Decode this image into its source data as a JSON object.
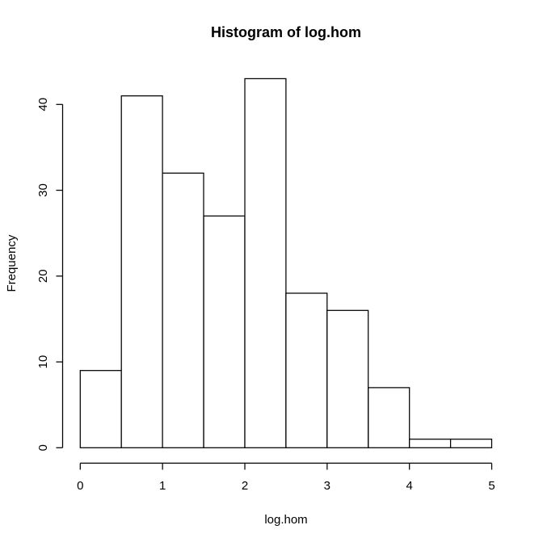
{
  "window": {
    "background": "#ffffff"
  },
  "chart_data": {
    "type": "bar",
    "subtype": "histogram",
    "title": "Histogram of log.hom",
    "xlabel": "log.hom",
    "ylabel": "Frequency",
    "bin_edges": [
      0,
      0.5,
      1,
      1.5,
      2,
      2.5,
      3,
      3.5,
      4,
      4.5,
      5
    ],
    "counts": [
      9,
      41,
      32,
      27,
      43,
      18,
      16,
      7,
      1,
      1
    ],
    "x_tick_values": [
      0,
      1,
      2,
      3,
      4,
      5
    ],
    "y_tick_values": [
      0,
      10,
      20,
      30,
      40
    ],
    "xlim": [
      0,
      5
    ],
    "ylim": [
      0,
      43
    ],
    "grid": false,
    "legend_position": "none",
    "bar_fill": "#ffffff",
    "bar_stroke": "#000000",
    "axis_color": "#000000",
    "text_color": "#000000"
  }
}
